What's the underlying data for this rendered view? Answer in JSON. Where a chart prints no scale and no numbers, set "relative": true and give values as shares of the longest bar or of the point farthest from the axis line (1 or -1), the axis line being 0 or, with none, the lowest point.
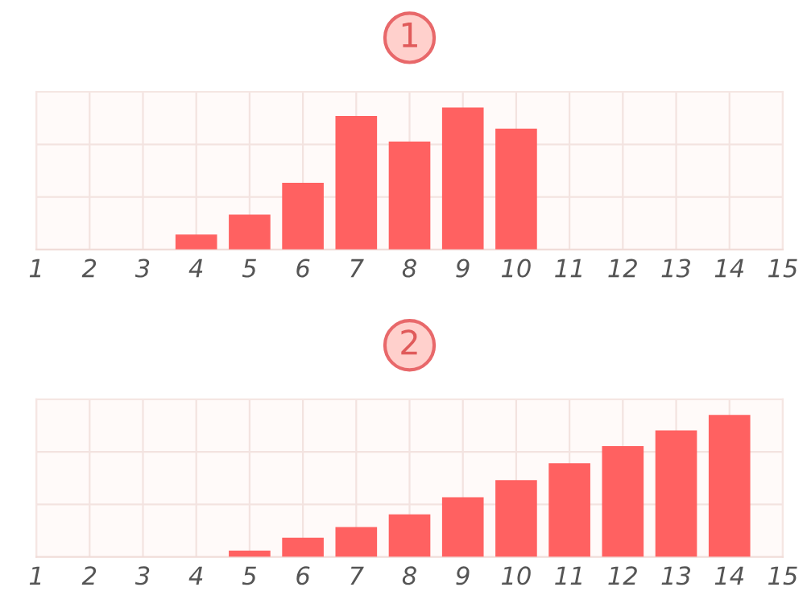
{
  "chart_data": [
    {
      "type": "bar",
      "title": "1",
      "x": [
        4,
        5,
        6,
        7,
        8,
        9,
        10
      ],
      "values": [
        0.105,
        0.245,
        0.47,
        0.94,
        0.76,
        1,
        0.85
      ],
      "color": "#ff6161",
      "relative": true,
      "xlim": [
        1,
        15
      ],
      "xticks": [
        1,
        2,
        3,
        4,
        5,
        6,
        7,
        8,
        9,
        10,
        11,
        12,
        13,
        14,
        15
      ],
      "grid": true,
      "tick_labels": "x"
    },
    {
      "type": "bar",
      "title": "2",
      "x": [
        5,
        6,
        7,
        8,
        9,
        10,
        11,
        12,
        13,
        14
      ],
      "values": [
        0.045,
        0.135,
        0.21,
        0.3,
        0.42,
        0.54,
        0.66,
        0.78,
        0.89,
        1
      ],
      "color": "#ff6161",
      "relative": true,
      "xlim": [
        1,
        15
      ],
      "xticks": [
        1,
        2,
        3,
        4,
        5,
        6,
        7,
        8,
        9,
        10,
        11,
        12,
        13,
        14,
        15
      ],
      "grid": true,
      "tick_labels": "x"
    }
  ]
}
